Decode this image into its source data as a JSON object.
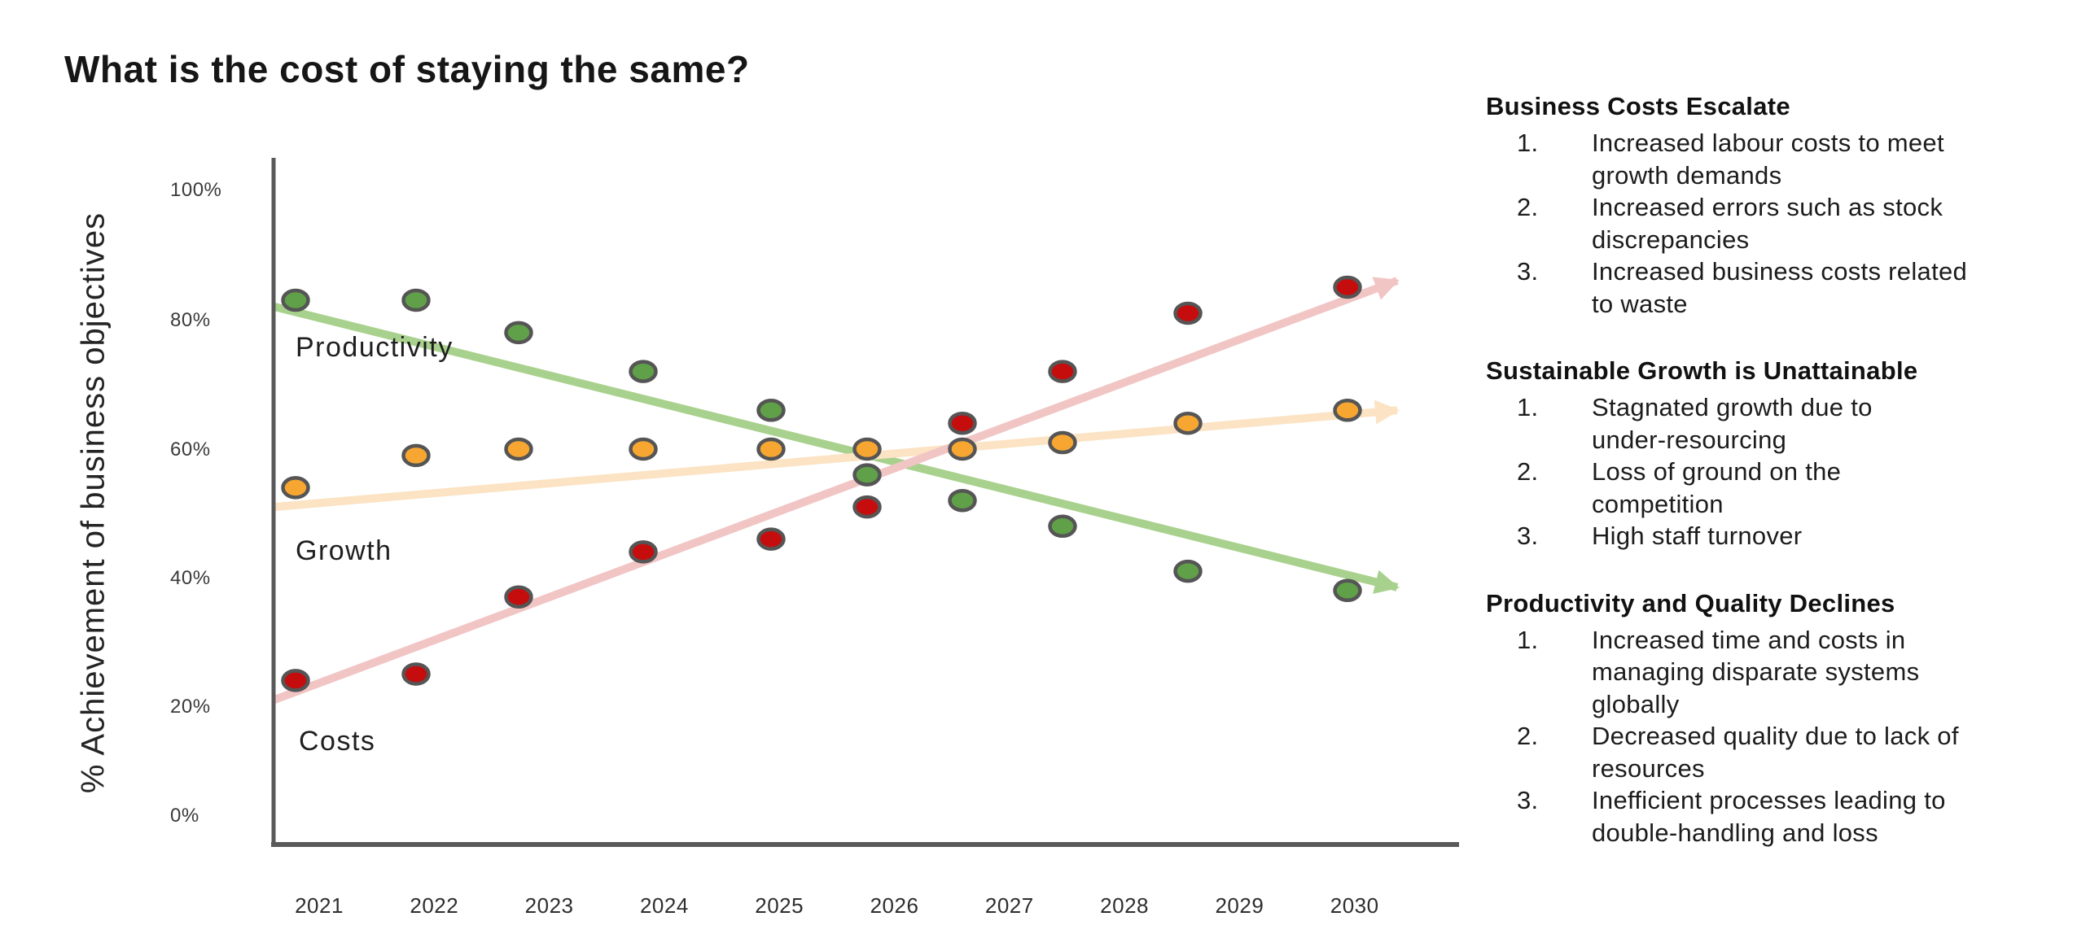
{
  "title": "What is the cost of staying the same?",
  "chart_data": {
    "type": "scatter",
    "title": "What is the cost of staying the same?",
    "xlabel": "",
    "ylabel": "% Achievement of business objectives",
    "x": [
      2021,
      2022,
      2023,
      2024,
      2025,
      2026,
      2027,
      2028,
      2029,
      2030
    ],
    "y_tick_labels": [
      "100%",
      "80%",
      "60%",
      "40%",
      "20%",
      "0%"
    ],
    "ylim": [
      0,
      100
    ],
    "grid": false,
    "legend_position": "inline-labels",
    "axis_color": "#595959",
    "point_stroke": "#555555",
    "series": [
      {
        "name": "Productivity",
        "point_color": "#5FA048",
        "line_color": "#A9D18E",
        "values": [
          83,
          83,
          78,
          72,
          66,
          56,
          52,
          48,
          41,
          38
        ],
        "trend": {
          "start": 82,
          "end": 38.5
        }
      },
      {
        "name": "Growth",
        "point_color": "#F7A631",
        "line_color": "#FBE3C4",
        "values": [
          54,
          59,
          60,
          60,
          60,
          60,
          60,
          61,
          64,
          66
        ],
        "trend": {
          "start": 51,
          "end": 66
        }
      },
      {
        "name": "Costs",
        "point_color": "#C60D0D",
        "line_color": "#F2C5C5",
        "values": [
          24,
          25,
          37,
          44,
          46,
          51,
          64,
          72,
          81,
          85
        ],
        "trend": {
          "start": 21,
          "end": 86
        }
      }
    ]
  },
  "panel": {
    "sections": [
      {
        "heading": "Business Costs Escalate",
        "items": [
          [
            "Increased labour costs to meet",
            "growth demands"
          ],
          [
            "Increased errors such as stock",
            "discrepancies"
          ],
          [
            "Increased business costs related",
            "to waste"
          ]
        ]
      },
      {
        "heading": "Sustainable Growth is Unattainable",
        "items": [
          [
            "Stagnated growth due to",
            "under-resourcing"
          ],
          [
            "Loss of ground on the",
            "competition"
          ],
          [
            "High staff turnover"
          ]
        ]
      },
      {
        "heading": "Productivity and Quality Declines",
        "items": [
          [
            "Increased time and costs in",
            "managing disparate systems",
            "globally"
          ],
          [
            "Decreased quality due to lack of",
            "resources"
          ],
          [
            "Inefficient processes leading to",
            "double-handling and loss"
          ]
        ]
      }
    ]
  }
}
